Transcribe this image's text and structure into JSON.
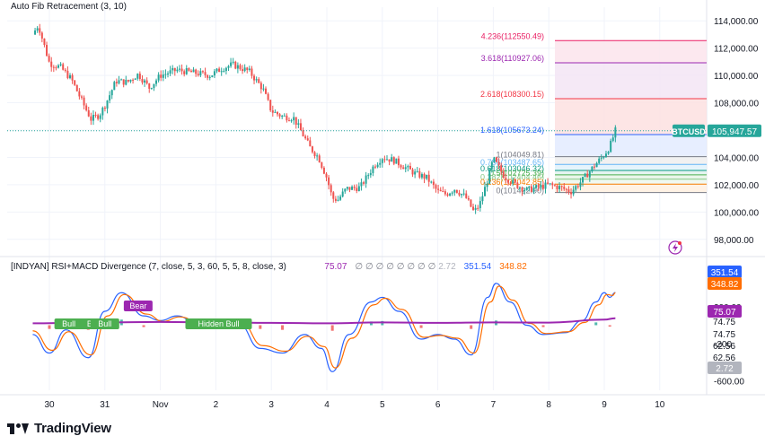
{
  "app": {
    "brand": "TradingView"
  },
  "colors": {
    "up": "#26a69a",
    "down": "#ef5350",
    "rsi": "#2962ff",
    "macd": "#ff6d00",
    "signal": "#9c27b0",
    "grid": "#f0f3fa",
    "axis_text": "#131722",
    "current_line": "#26a69a"
  },
  "chart_data": [
    {
      "type": "candlestick",
      "title": "",
      "indicator_label": "Auto Fib Retracement (3, 10)",
      "symbol": "BTCUSD",
      "last_price": "105,947.57",
      "ylim": [
        97000,
        115000
      ],
      "y_ticks": [
        "114,000.00",
        "112,000.00",
        "110,000.00",
        "108,000.00",
        "106,000.00",
        "104,000.00",
        "102,000.00",
        "100,000.00",
        "98,000.00"
      ],
      "x_ticks": [
        "30",
        "31",
        "Nov",
        "2",
        "3",
        "4",
        "5",
        "6",
        "7",
        "8",
        "9",
        "10"
      ],
      "grid": true,
      "close_path": [
        {
          "d": 29.7,
          "p": 113000
        },
        {
          "d": 29.8,
          "p": 113700
        },
        {
          "d": 30.0,
          "p": 110900
        },
        {
          "d": 30.2,
          "p": 110600
        },
        {
          "d": 30.4,
          "p": 109700
        },
        {
          "d": 30.6,
          "p": 108000
        },
        {
          "d": 30.75,
          "p": 106800
        },
        {
          "d": 30.9,
          "p": 107100
        },
        {
          "d": 31.0,
          "p": 107800
        },
        {
          "d": 31.2,
          "p": 109600
        },
        {
          "d": 31.4,
          "p": 109500
        },
        {
          "d": 31.6,
          "p": 110100
        },
        {
          "d": 31.8,
          "p": 109100
        },
        {
          "d": 32.0,
          "p": 110000
        },
        {
          "d": 32.3,
          "p": 110400
        },
        {
          "d": 32.6,
          "p": 110200
        },
        {
          "d": 32.9,
          "p": 110000
        },
        {
          "d": 33.1,
          "p": 110500
        },
        {
          "d": 33.3,
          "p": 110800
        },
        {
          "d": 33.6,
          "p": 110300
        },
        {
          "d": 33.85,
          "p": 109000
        },
        {
          "d": 34.0,
          "p": 107400
        },
        {
          "d": 34.2,
          "p": 107000
        },
        {
          "d": 34.4,
          "p": 106900
        },
        {
          "d": 34.55,
          "p": 105800
        },
        {
          "d": 34.7,
          "p": 104700
        },
        {
          "d": 34.85,
          "p": 104000
        },
        {
          "d": 35.0,
          "p": 102500
        },
        {
          "d": 35.1,
          "p": 101000
        },
        {
          "d": 35.2,
          "p": 100900
        },
        {
          "d": 35.35,
          "p": 101700
        },
        {
          "d": 35.6,
          "p": 101800
        },
        {
          "d": 35.85,
          "p": 103400
        },
        {
          "d": 36.0,
          "p": 104000
        },
        {
          "d": 36.2,
          "p": 103800
        },
        {
          "d": 36.4,
          "p": 103300
        },
        {
          "d": 36.6,
          "p": 102800
        },
        {
          "d": 36.8,
          "p": 102500
        },
        {
          "d": 37.0,
          "p": 101500
        },
        {
          "d": 37.15,
          "p": 101300
        },
        {
          "d": 37.3,
          "p": 101700
        },
        {
          "d": 37.5,
          "p": 101100
        },
        {
          "d": 37.65,
          "p": 100000
        },
        {
          "d": 37.75,
          "p": 100500
        },
        {
          "d": 37.9,
          "p": 102400
        },
        {
          "d": 38.0,
          "p": 103900
        },
        {
          "d": 38.2,
          "p": 102600
        },
        {
          "d": 38.4,
          "p": 102000
        },
        {
          "d": 38.6,
          "p": 101600
        },
        {
          "d": 38.8,
          "p": 101800
        },
        {
          "d": 39.0,
          "p": 102000
        },
        {
          "d": 39.2,
          "p": 101800
        },
        {
          "d": 39.4,
          "p": 101500
        },
        {
          "d": 39.6,
          "p": 102300
        },
        {
          "d": 39.8,
          "p": 103300
        },
        {
          "d": 40.0,
          "p": 104200
        },
        {
          "d": 40.1,
          "p": 104800
        },
        {
          "d": 40.2,
          "p": 105950
        }
      ],
      "fib_levels": [
        {
          "label": "4.236(112550.49)",
          "price": 112550.49,
          "color": "#e91e63"
        },
        {
          "label": "3.618(110927.06)",
          "price": 110927.06,
          "color": "#9c27b0"
        },
        {
          "label": "2.618(108300.15)",
          "price": 108300.15,
          "color": "#f23645"
        },
        {
          "label": "1.618(105673.24)",
          "price": 105673.24,
          "color": "#2962ff"
        },
        {
          "label": "1(104049.81)",
          "price": 104049.81,
          "color": "#787b86"
        },
        {
          "label": "0.786(103487.65)",
          "price": 103487.65,
          "color": "#64b5f6"
        },
        {
          "label": "0.618(103046.32)",
          "price": 103046.32,
          "color": "#089981"
        },
        {
          "label": "0.5(102725.39)",
          "price": 102725.39,
          "color": "#4caf50"
        },
        {
          "label": "0.382(102404.46)",
          "price": 102404.46,
          "color": "#81c784"
        },
        {
          "label": "0.236(102042.85)",
          "price": 102042.85,
          "color": "#f57c00"
        },
        {
          "label": "0(101422.90)",
          "price": 101422.9,
          "color": "#787b86"
        }
      ]
    },
    {
      "type": "line",
      "title": "",
      "indicator_label": "[INDYAN] RSI+MACD Divergence (7, close, 5, 3, 60, 5, 5, 8, close, 3)",
      "values_text": [
        "75.07",
        "∅",
        "∅",
        "∅",
        "∅",
        "∅",
        "∅",
        "∅",
        "∅",
        "2.72",
        "351.54",
        "348.82"
      ],
      "values_colors": [
        "#9c27b0",
        "#787b86",
        "#787b86",
        "#787b86",
        "#787b86",
        "#787b86",
        "#787b86",
        "#787b86",
        "#787b86",
        "#b2b5be",
        "#2962ff",
        "#ff6d00"
      ],
      "ylim": [
        -700,
        700
      ],
      "y_ticks": [
        "600.00",
        "200.00",
        "-200",
        "-600.00"
      ],
      "extra_scale_labels": [
        "74.75",
        "74.75",
        "62.56",
        "62.56"
      ],
      "badges": [
        {
          "text": "351.54",
          "value": 351.54,
          "color": "#2962ff"
        },
        {
          "text": "348.82",
          "value": 348.82,
          "color": "#ff6d00"
        },
        {
          "text": "75.07",
          "value": 75.07,
          "color": "#9c27b0"
        },
        {
          "text": "2.72",
          "value": 2.72,
          "color": "#b2b5be"
        }
      ],
      "x_ticks": [
        "30",
        "31",
        "Nov",
        "2",
        "3",
        "4",
        "5",
        "6",
        "7",
        "8",
        "9",
        "10"
      ],
      "series": [
        {
          "color": "#2962ff",
          "points": [
            {
              "d": 29.7,
              "v": -100
            },
            {
              "d": 30.0,
              "v": -300
            },
            {
              "d": 30.3,
              "v": -50
            },
            {
              "d": 30.7,
              "v": -350
            },
            {
              "d": 31.0,
              "v": 150
            },
            {
              "d": 31.3,
              "v": 350
            },
            {
              "d": 31.7,
              "v": 100
            },
            {
              "d": 32.0,
              "v": 50
            },
            {
              "d": 32.3,
              "v": 100
            },
            {
              "d": 32.7,
              "v": 0
            },
            {
              "d": 33.0,
              "v": 50
            },
            {
              "d": 33.4,
              "v": 20
            },
            {
              "d": 33.8,
              "v": -250
            },
            {
              "d": 34.2,
              "v": -300
            },
            {
              "d": 34.6,
              "v": -100
            },
            {
              "d": 34.9,
              "v": -250
            },
            {
              "d": 35.1,
              "v": -500
            },
            {
              "d": 35.4,
              "v": -100
            },
            {
              "d": 35.8,
              "v": 250
            },
            {
              "d": 36.0,
              "v": 300
            },
            {
              "d": 36.3,
              "v": 150
            },
            {
              "d": 36.7,
              "v": -150
            },
            {
              "d": 37.0,
              "v": -100
            },
            {
              "d": 37.3,
              "v": -150
            },
            {
              "d": 37.6,
              "v": -320
            },
            {
              "d": 37.9,
              "v": 300
            },
            {
              "d": 38.05,
              "v": 450
            },
            {
              "d": 38.3,
              "v": 250
            },
            {
              "d": 38.6,
              "v": 0
            },
            {
              "d": 38.9,
              "v": -100
            },
            {
              "d": 39.3,
              "v": -80
            },
            {
              "d": 39.6,
              "v": 50
            },
            {
              "d": 39.85,
              "v": 250
            },
            {
              "d": 40.0,
              "v": 350
            },
            {
              "d": 40.1,
              "v": 300
            },
            {
              "d": 40.2,
              "v": 351.54
            }
          ]
        },
        {
          "color": "#ff6d00",
          "points": [
            {
              "d": 29.7,
              "v": -60
            },
            {
              "d": 30.05,
              "v": -270
            },
            {
              "d": 30.35,
              "v": -70
            },
            {
              "d": 30.75,
              "v": -320
            },
            {
              "d": 31.05,
              "v": 100
            },
            {
              "d": 31.35,
              "v": 330
            },
            {
              "d": 31.75,
              "v": 120
            },
            {
              "d": 32.05,
              "v": 40
            },
            {
              "d": 32.35,
              "v": 90
            },
            {
              "d": 32.75,
              "v": 10
            },
            {
              "d": 33.05,
              "v": 40
            },
            {
              "d": 33.45,
              "v": 30
            },
            {
              "d": 33.85,
              "v": -220
            },
            {
              "d": 34.25,
              "v": -280
            },
            {
              "d": 34.65,
              "v": -120
            },
            {
              "d": 34.95,
              "v": -230
            },
            {
              "d": 35.15,
              "v": -460
            },
            {
              "d": 35.45,
              "v": -140
            },
            {
              "d": 35.85,
              "v": 220
            },
            {
              "d": 36.05,
              "v": 290
            },
            {
              "d": 36.35,
              "v": 170
            },
            {
              "d": 36.75,
              "v": -130
            },
            {
              "d": 37.05,
              "v": -110
            },
            {
              "d": 37.35,
              "v": -140
            },
            {
              "d": 37.65,
              "v": -300
            },
            {
              "d": 37.95,
              "v": 250
            },
            {
              "d": 38.1,
              "v": 420
            },
            {
              "d": 38.35,
              "v": 270
            },
            {
              "d": 38.65,
              "v": 20
            },
            {
              "d": 38.95,
              "v": -90
            },
            {
              "d": 39.35,
              "v": -70
            },
            {
              "d": 39.65,
              "v": 30
            },
            {
              "d": 39.9,
              "v": 220
            },
            {
              "d": 40.05,
              "v": 330
            },
            {
              "d": 40.15,
              "v": 320
            },
            {
              "d": 40.2,
              "v": 348.82
            }
          ]
        },
        {
          "color": "#9c27b0",
          "points": [
            {
              "d": 29.7,
              "v": 20
            },
            {
              "d": 30.5,
              "v": 25
            },
            {
              "d": 31.0,
              "v": 30
            },
            {
              "d": 32.0,
              "v": 35
            },
            {
              "d": 33.0,
              "v": 30
            },
            {
              "d": 34.0,
              "v": 25
            },
            {
              "d": 35.0,
              "v": 20
            },
            {
              "d": 36.0,
              "v": 30
            },
            {
              "d": 37.0,
              "v": 25
            },
            {
              "d": 38.0,
              "v": 30
            },
            {
              "d": 39.0,
              "v": 28
            },
            {
              "d": 40.0,
              "v": 60
            },
            {
              "d": 40.2,
              "v": 75.07
            }
          ]
        }
      ],
      "histogram": [
        {
          "d": 30.0,
          "v": -40
        },
        {
          "d": 30.3,
          "v": -30
        },
        {
          "d": 30.7,
          "v": -50
        },
        {
          "d": 31.0,
          "v": 40
        },
        {
          "d": 31.3,
          "v": 60
        },
        {
          "d": 31.7,
          "v": -20
        },
        {
          "d": 33.8,
          "v": -40
        },
        {
          "d": 34.2,
          "v": -50
        },
        {
          "d": 35.1,
          "v": -60
        },
        {
          "d": 35.8,
          "v": 40
        },
        {
          "d": 36.0,
          "v": 45
        },
        {
          "d": 36.7,
          "v": -30
        },
        {
          "d": 37.6,
          "v": -40
        },
        {
          "d": 38.05,
          "v": 50
        },
        {
          "d": 38.9,
          "v": -20
        },
        {
          "d": 39.85,
          "v": 30
        },
        {
          "d": 40.1,
          "v": -15
        }
      ],
      "annotations": [
        {
          "text": "Bull",
          "kind": "bull",
          "d": 30.35
        },
        {
          "text": "Bull",
          "kind": "bull",
          "d": 30.8
        },
        {
          "text": "Bull",
          "kind": "bull",
          "d": 31.0
        },
        {
          "text": "Bear",
          "kind": "bear",
          "d": 31.6
        },
        {
          "text": "Hidden Bull",
          "kind": "bull",
          "d": 33.05
        }
      ]
    }
  ]
}
